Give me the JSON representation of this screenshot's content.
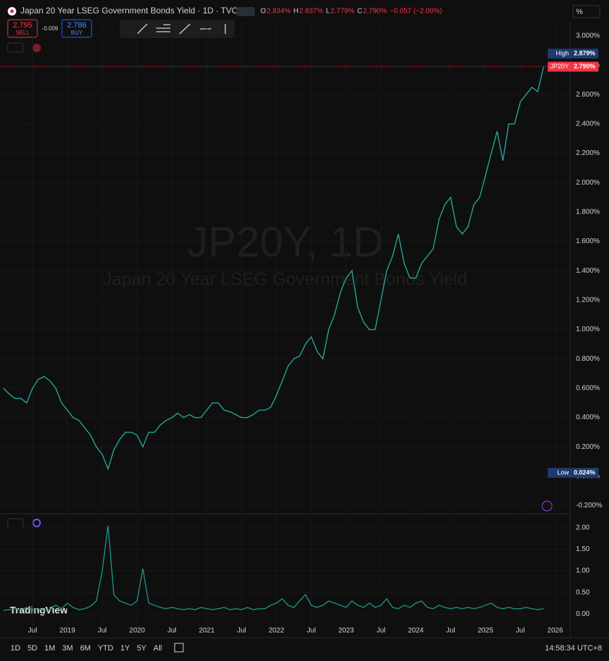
{
  "header": {
    "title": "Japan 20 Year LSEG Government Bonds Yield · 1D · TVC",
    "ohlc": [
      {
        "key": "O",
        "value": "2.834%"
      },
      {
        "key": "H",
        "value": "2.837%"
      },
      {
        "key": "L",
        "value": "2.779%"
      },
      {
        "key": "C",
        "value": "2.790%"
      }
    ],
    "change": "−0.057 (−2.00%)",
    "sell_price": "2.795",
    "sell": "SELL",
    "spread": "-0.009",
    "buy_price": "2.786",
    "buy": "BUY",
    "scale_mode": "%"
  },
  "watermark": {
    "symbol": "JP20Y, 1D",
    "description": "Japan 20 Year LSEG Government Bonds Yield"
  },
  "logo": "TradingView",
  "footer": {
    "ranges": [
      "1D",
      "5D",
      "1M",
      "3M",
      "6M",
      "YTD",
      "1Y",
      "5Y",
      "All"
    ],
    "time": "14:58:34 UTC+8"
  },
  "chart_data": [
    {
      "type": "line",
      "ylim": [
        -0.25,
        3.1
      ],
      "xlim": [
        -0.6,
        97.6
      ],
      "yticks": [
        {
          "value": -0.2,
          "label": "-0.200%"
        },
        {
          "value": 0,
          "label": "0.000%"
        },
        {
          "value": 0.2,
          "label": "0.200%"
        },
        {
          "value": 0.4,
          "label": "0.400%"
        },
        {
          "value": 0.6,
          "label": "0.600%"
        },
        {
          "value": 0.8,
          "label": "0.800%"
        },
        {
          "value": 1,
          "label": "1.000%"
        },
        {
          "value": 1.2,
          "label": "1.200%"
        },
        {
          "value": 1.4,
          "label": "1.400%"
        },
        {
          "value": 1.6,
          "label": "1.600%"
        },
        {
          "value": 1.8,
          "label": "1.800%"
        },
        {
          "value": 2,
          "label": "2.000%"
        },
        {
          "value": 2.2,
          "label": "2.200%"
        },
        {
          "value": 2.4,
          "label": "2.400%"
        },
        {
          "value": 2.6,
          "label": "2.600%"
        },
        {
          "value": 2.8,
          "label": "2.800%"
        },
        {
          "value": 3,
          "label": "3.000%"
        }
      ],
      "xticks": [
        {
          "value": 5,
          "label": "Jul"
        },
        {
          "value": 11,
          "label": "2019"
        },
        {
          "value": 17,
          "label": "Jul"
        },
        {
          "value": 23,
          "label": "2020"
        },
        {
          "value": 29,
          "label": "Jul"
        },
        {
          "value": 35,
          "label": "2021"
        },
        {
          "value": 41,
          "label": "Jul"
        },
        {
          "value": 47,
          "label": "2022"
        },
        {
          "value": 53,
          "label": "Jul"
        },
        {
          "value": 59,
          "label": "2023"
        },
        {
          "value": 65,
          "label": "Jul"
        },
        {
          "value": 71,
          "label": "2024"
        },
        {
          "value": 77,
          "label": "Jul"
        },
        {
          "value": 83,
          "label": "2025"
        },
        {
          "value": 89,
          "label": "Jul"
        },
        {
          "value": 95,
          "label": "2026"
        }
      ],
      "price_labels": [
        {
          "name": "High",
          "value": 2.879,
          "label": "2.879%",
          "color": "#1e3a6e"
        },
        {
          "name": "JP20Y",
          "value": 2.79,
          "label": "2.790%",
          "color": "#f23645"
        },
        {
          "name": "Low",
          "value": 0.024,
          "label": "0.024%",
          "color": "#1e3a6e"
        }
      ],
      "series": [
        {
          "name": "JP20Y",
          "color": "#26a69a",
          "values": [
            0.6,
            0.56,
            0.53,
            0.53,
            0.5,
            0.6,
            0.66,
            0.68,
            0.65,
            0.6,
            0.5,
            0.45,
            0.4,
            0.38,
            0.33,
            0.28,
            0.2,
            0.15,
            0.05,
            0.18,
            0.25,
            0.3,
            0.3,
            0.28,
            0.2,
            0.3,
            0.3,
            0.35,
            0.38,
            0.4,
            0.43,
            0.4,
            0.42,
            0.4,
            0.4,
            0.45,
            0.5,
            0.5,
            0.45,
            0.44,
            0.42,
            0.4,
            0.4,
            0.42,
            0.45,
            0.45,
            0.47,
            0.55,
            0.65,
            0.75,
            0.8,
            0.82,
            0.9,
            0.95,
            0.85,
            0.8,
            1.0,
            1.1,
            1.25,
            1.35,
            1.4,
            1.15,
            1.05,
            1.0,
            1.0,
            1.2,
            1.4,
            1.5,
            1.65,
            1.45,
            1.35,
            1.35,
            1.45,
            1.5,
            1.55,
            1.75,
            1.85,
            1.9,
            1.7,
            1.65,
            1.7,
            1.85,
            1.9,
            2.05,
            2.2,
            2.35,
            2.15,
            2.4,
            2.4,
            2.55,
            2.6,
            2.65,
            2.62,
            2.79
          ]
        }
      ]
    },
    {
      "type": "line",
      "ylim": [
        -0.39,
        2.31
      ],
      "yticks": [
        {
          "value": 0,
          "label": "0.00"
        },
        {
          "value": 0.5,
          "label": "0.50"
        },
        {
          "value": 1,
          "label": "1.00"
        },
        {
          "value": 1.5,
          "label": "1.50"
        },
        {
          "value": 2,
          "label": "2.00"
        }
      ],
      "series": [
        {
          "color": "#1f8f86",
          "values": [
            0.08,
            0.1,
            0.12,
            0.09,
            0.15,
            0.1,
            0.12,
            0.08,
            0.1,
            0.2,
            0.12,
            0.25,
            0.15,
            0.1,
            0.12,
            0.18,
            0.3,
            1.0,
            2.05,
            0.45,
            0.3,
            0.25,
            0.2,
            0.3,
            1.05,
            0.25,
            0.2,
            0.15,
            0.12,
            0.15,
            0.12,
            0.1,
            0.12,
            0.1,
            0.15,
            0.12,
            0.1,
            0.12,
            0.15,
            0.1,
            0.12,
            0.1,
            0.15,
            0.1,
            0.12,
            0.12,
            0.2,
            0.25,
            0.35,
            0.2,
            0.15,
            0.3,
            0.45,
            0.2,
            0.15,
            0.2,
            0.3,
            0.25,
            0.2,
            0.15,
            0.3,
            0.2,
            0.15,
            0.25,
            0.15,
            0.2,
            0.35,
            0.15,
            0.12,
            0.2,
            0.15,
            0.25,
            0.3,
            0.15,
            0.12,
            0.2,
            0.15,
            0.12,
            0.15,
            0.12,
            0.15,
            0.12,
            0.15,
            0.2,
            0.25,
            0.15,
            0.12,
            0.15,
            0.12,
            0.12,
            0.15,
            0.12,
            0.1,
            0.12
          ]
        }
      ]
    }
  ]
}
